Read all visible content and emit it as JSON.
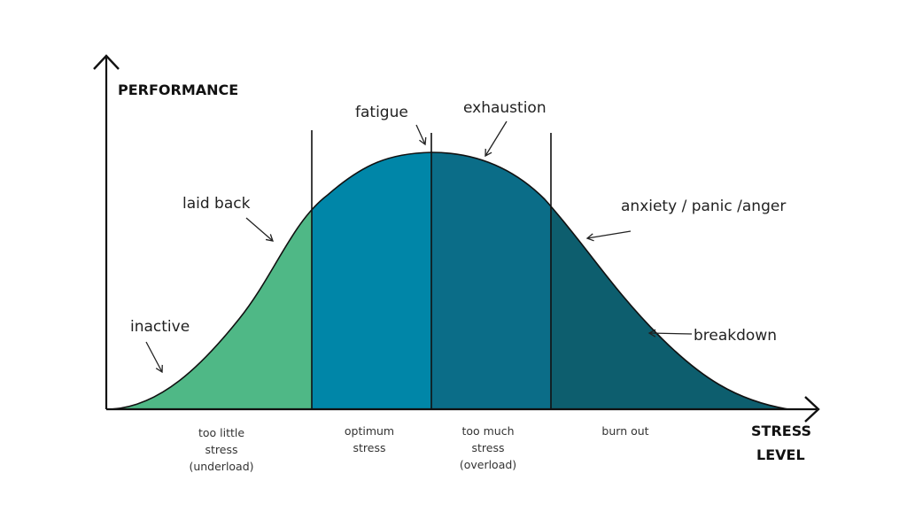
{
  "axes": {
    "y_label": "PERFORMANCE",
    "x_label_line1": "STRESS",
    "x_label_line2": "LEVEL"
  },
  "colors": {
    "zone_too_little": "#4fb886",
    "zone_optimum": "#0086a8",
    "zone_too_much": "#0b6d88",
    "zone_burn_out": "#0d5e6e",
    "line": "#111111"
  },
  "annotations": {
    "inactive": "inactive",
    "laid_back": "laid back",
    "fatigue": "fatigue",
    "exhaustion": "exhaustion",
    "anxiety": "anxiety / panic /anger",
    "breakdown": "breakdown"
  },
  "zones": {
    "too_little": [
      "too little",
      "stress",
      "(underload)"
    ],
    "optimum": [
      "optimum",
      "stress"
    ],
    "too_much": [
      "too much",
      "stress",
      "(overload)"
    ],
    "burn_out": [
      "burn out"
    ]
  }
}
